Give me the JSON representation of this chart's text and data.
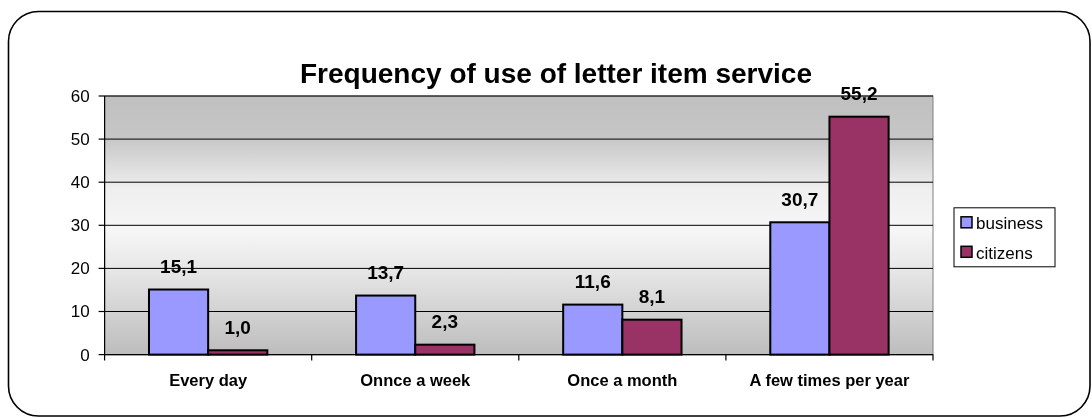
{
  "chart_data": {
    "type": "bar",
    "title": "Frequency of use of letter item service",
    "categories": [
      "Every day",
      "Onnce a week",
      "Once a month",
      "A few times per year"
    ],
    "series": [
      {
        "name": "business",
        "color": "#9999ff",
        "values": [
          15.1,
          13.7,
          11.6,
          30.7
        ],
        "value_labels": [
          "15,1",
          "13,7",
          "11,6",
          "30,7"
        ]
      },
      {
        "name": "citizens",
        "color": "#993366",
        "values": [
          1.0,
          2.3,
          8.1,
          55.2
        ],
        "value_labels": [
          "1,0",
          "2,3",
          "8,1",
          "55,2"
        ]
      }
    ],
    "ylim": [
      0,
      60
    ],
    "yticks": [
      0,
      10,
      20,
      30,
      40,
      50,
      60
    ],
    "grid": "y",
    "legend": "right"
  }
}
